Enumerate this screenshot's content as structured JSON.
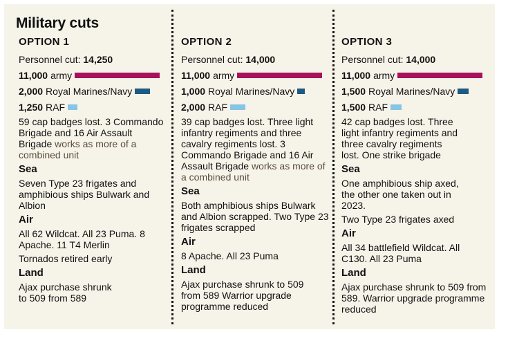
{
  "title": "Military cuts",
  "colors": {
    "army": "#a6135b",
    "navy": "#1e5a82",
    "raf": "#86c5e6",
    "background": "#f6f3e9"
  },
  "options": [
    {
      "heading": "OPTION 1",
      "personnel_label": "Personnel cut:",
      "personnel_value": "14,250",
      "army_value": "11,000",
      "army_label": "army",
      "navy_value": "2,000",
      "navy_label": "Royal Marines/Navy",
      "raf_value": "1,250",
      "raf_label": "RAF",
      "lost_text": "59 cap badges lost. 3 Commando Brigade and 16 Air Assault Brigade",
      "lost_extra": "works as more of a combined unit",
      "sea_heading": "Sea",
      "sea_items": [
        "Seven Type 23 frigates and amphibious ships Bulwark and Albion"
      ],
      "air_heading": "Air",
      "air_items": [
        "All 62 Wildcat. All 23 Puma. 8 Apache. 11 T4 Merlin",
        "Tornados retired early"
      ],
      "land_heading": "Land",
      "land_items": [
        "Ajax purchase shrunk to 509 from 589"
      ]
    },
    {
      "heading": "OPTION 2",
      "personnel_label": "Personnel cut:",
      "personnel_value": "14,000",
      "army_value": "11,000",
      "army_label": "army",
      "navy_value": "1,000",
      "navy_label": "Royal Marines/Navy",
      "raf_value": "2,000",
      "raf_label": "RAF",
      "lost_text": "39 cap badges lost. Three light infantry regiments and three cavalry regiments lost. 3 Commando Brigade and 16 Air Assault Brigade",
      "lost_extra": "works as more of a combined unit",
      "sea_heading": "Sea",
      "sea_items": [
        "Both amphibious ships Bulwark and Albion scrapped. Two Type 23 frigates scrapped"
      ],
      "air_heading": "Air",
      "air_items": [
        "8 Apache. All 23 Puma"
      ],
      "land_heading": "Land",
      "land_items": [
        "Ajax purchase shrunk to 509 from 589 Warrior upgrade programme reduced"
      ]
    },
    {
      "heading": "OPTION 3",
      "personnel_label": "Personnel cut:",
      "personnel_value": "14,000",
      "army_value": "11,000",
      "army_label": "army",
      "navy_value": "1,500",
      "navy_label": "Royal Marines/Navy",
      "raf_value": "1,500",
      "raf_label": "RAF",
      "lost_text": "42 cap badges lost. Three light infantry regiments and three cavalry regiments lost. One strike brigade",
      "lost_extra": "",
      "sea_heading": "Sea",
      "sea_items": [
        "One amphibious ship axed, the other one taken out in 2023.",
        "Two Type 23 frigates axed"
      ],
      "air_heading": "Air",
      "air_items": [
        "All 34 battlefield Wildcat. All C130. All 23 Puma"
      ],
      "land_heading": "Land",
      "land_items": [
        "Ajax purchase shrunk to 509 from 589. Warrior upgrade programme reduced"
      ]
    }
  ]
}
